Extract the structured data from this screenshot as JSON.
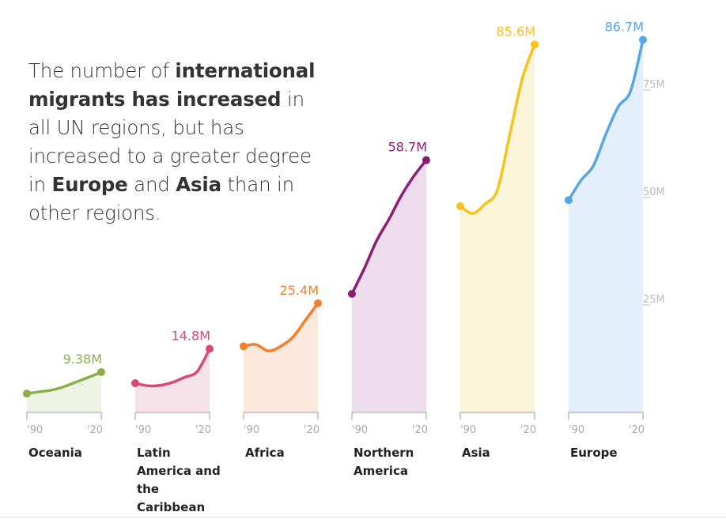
{
  "headline": {
    "parts": [
      {
        "text": "The number of ",
        "bold": false
      },
      {
        "text": "international migrants has increased",
        "bold": true
      },
      {
        "text": " in all UN regions, but has increased to a greater degree in ",
        "bold": false
      },
      {
        "text": "Europe",
        "bold": true
      },
      {
        "text": " and ",
        "bold": false
      },
      {
        "text": "Asia",
        "bold": true
      },
      {
        "text": " than in other regions.",
        "bold": false
      }
    ]
  },
  "chart_data": {
    "type": "area",
    "title": "The number of international migrants has increased in all UN regions, but has increased to a greater degree in Europe and Asia than in other regions.",
    "x": [
      1990,
      1995,
      2000,
      2005,
      2010,
      2015,
      2020
    ],
    "x_tick_labels": [
      "'90",
      "'20"
    ],
    "ylim": [
      0,
      90
    ],
    "y_ticks": [
      25,
      50,
      75
    ],
    "y_tick_labels": [
      "25M",
      "50M",
      "75M"
    ],
    "series": [
      {
        "name": "Oceania",
        "color": "#8bb04a",
        "fill": "#eef3e4",
        "end_label": "9.38M",
        "values": [
          4.4,
          4.8,
          5.2,
          6.0,
          7.1,
          8.2,
          9.38
        ]
      },
      {
        "name": "Latin America and the Caribbean",
        "color": "#d9487a",
        "fill": "#f8e2ea",
        "end_label": "14.8M",
        "values": [
          6.8,
          6.2,
          6.3,
          7.0,
          8.2,
          9.5,
          14.8
        ]
      },
      {
        "name": "Africa",
        "color": "#f57f2a",
        "fill": "#fde8dc",
        "end_label": "25.4M",
        "values": [
          15.4,
          15.8,
          14.3,
          15.4,
          17.6,
          21.5,
          25.4
        ]
      },
      {
        "name": "Northern America",
        "color": "#8a1e73",
        "fill": "#ecdcec",
        "end_label": "58.7M",
        "values": [
          27.6,
          33.5,
          40.0,
          45.0,
          50.5,
          55.0,
          58.7
        ]
      },
      {
        "name": "Asia",
        "color": "#f7c21b",
        "fill": "#fdf5d9",
        "end_label": "85.6M",
        "values": [
          48.0,
          46.3,
          48.5,
          51.8,
          64.7,
          77.6,
          85.6
        ]
      },
      {
        "name": "Europe",
        "color": "#55a6e8",
        "fill": "#e3f0fc",
        "end_label": "86.7M",
        "values": [
          49.4,
          54.0,
          57.4,
          64.7,
          71.1,
          74.8,
          86.7
        ]
      }
    ]
  }
}
